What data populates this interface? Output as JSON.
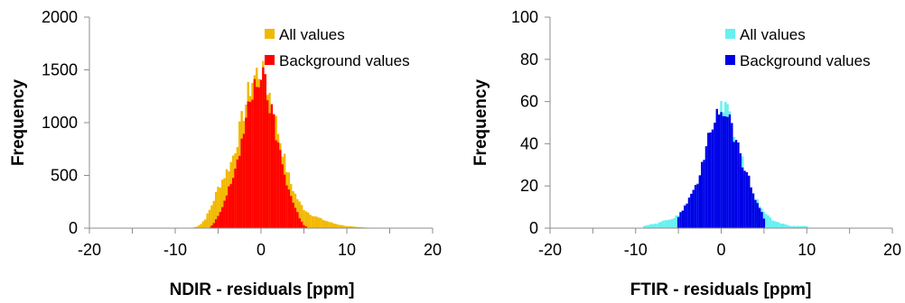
{
  "chart_data": [
    {
      "type": "bar",
      "subtype": "histogram",
      "xlabel": "NDIR - residuals [ppm]",
      "ylabel": "Frequency",
      "xlim": [
        -20,
        20
      ],
      "ylim": [
        0,
        2000
      ],
      "xticks": [
        "-20",
        "-10",
        "0",
        "10",
        "20"
      ],
      "yticks": [
        "0",
        "500",
        "1000",
        "1500",
        "2000"
      ],
      "grid": false,
      "legend": "top-right",
      "series": [
        {
          "name": "All values",
          "color": "#f2b800",
          "bin_width": 0.25,
          "x": [
            -8,
            -7.5,
            -7,
            -6.5,
            -6,
            -5.5,
            -5,
            -4.5,
            -4,
            -3.5,
            -3,
            -2.5,
            -2,
            -1.5,
            -1,
            -0.5,
            0,
            0.5,
            1,
            1.5,
            2,
            2.5,
            3,
            3.5,
            4,
            4.5,
            5,
            5.5,
            6,
            6.5,
            7,
            7.5,
            8,
            8.5,
            9,
            9.5,
            10,
            11,
            12,
            13,
            14
          ],
          "values": [
            5,
            15,
            40,
            90,
            170,
            270,
            380,
            460,
            540,
            620,
            760,
            930,
            1100,
            1270,
            1400,
            1470,
            1490,
            1400,
            1270,
            1100,
            920,
            740,
            560,
            420,
            320,
            240,
            185,
            150,
            125,
            105,
            88,
            72,
            58,
            45,
            35,
            27,
            20,
            12,
            7,
            3,
            1
          ]
        },
        {
          "name": "Background values",
          "color": "#ff0000",
          "bin_width": 0.25,
          "x": [
            -6,
            -5.5,
            -5,
            -4.5,
            -4,
            -3.5,
            -3,
            -2.5,
            -2,
            -1.5,
            -1,
            -0.5,
            0,
            0.5,
            1,
            1.5,
            2,
            2.5,
            3,
            3.5,
            4,
            4.5,
            5,
            5.5
          ],
          "values": [
            5,
            45,
            110,
            200,
            310,
            430,
            570,
            730,
            910,
            1100,
            1290,
            1420,
            1450,
            1350,
            1180,
            990,
            800,
            610,
            440,
            300,
            190,
            100,
            30,
            0
          ]
        }
      ]
    },
    {
      "type": "bar",
      "subtype": "histogram",
      "xlabel": "FTIR - residuals [ppm]",
      "ylabel": "Frequency",
      "xlim": [
        -20,
        20
      ],
      "ylim": [
        0,
        100
      ],
      "xticks": [
        "-20",
        "-10",
        "0",
        "10",
        "20"
      ],
      "yticks": [
        "0",
        "20",
        "40",
        "60",
        "80",
        "100"
      ],
      "grid": false,
      "legend": "top-right",
      "series": [
        {
          "name": "All values",
          "color": "#66f0f0",
          "bin_width": 0.25,
          "x": [
            -9,
            -8,
            -7.5,
            -7,
            -6.5,
            -6,
            -5.5,
            -5,
            -4.5,
            -4,
            -3.5,
            -3,
            -2.5,
            -2,
            -1.5,
            -1,
            -0.5,
            0,
            0.5,
            1,
            1.5,
            2,
            2.5,
            3,
            3.5,
            4,
            4.5,
            5,
            5.5,
            6,
            6.5,
            7,
            7.5,
            8,
            9,
            10
          ],
          "values": [
            1,
            2,
            2,
            3,
            4,
            4,
            5,
            6,
            9,
            12,
            15,
            20,
            26,
            33,
            42,
            50,
            56,
            58,
            56,
            52,
            45,
            38,
            31,
            26,
            20,
            15,
            11,
            8,
            6,
            4,
            3,
            2,
            2,
            1,
            1,
            1
          ]
        },
        {
          "name": "Background values",
          "color": "#0000e6",
          "bin_width": 0.25,
          "x": [
            -5,
            -4.5,
            -4,
            -3.5,
            -3,
            -2.5,
            -2,
            -1.5,
            -1,
            -0.5,
            0,
            0.5,
            1,
            1.5,
            2,
            2.5,
            3,
            3.5,
            4,
            4.5,
            5
          ],
          "values": [
            5,
            9,
            12,
            15,
            20,
            26,
            33,
            42,
            50,
            56,
            58,
            56,
            52,
            45,
            38,
            31,
            26,
            20,
            14,
            10,
            5
          ]
        }
      ]
    }
  ]
}
